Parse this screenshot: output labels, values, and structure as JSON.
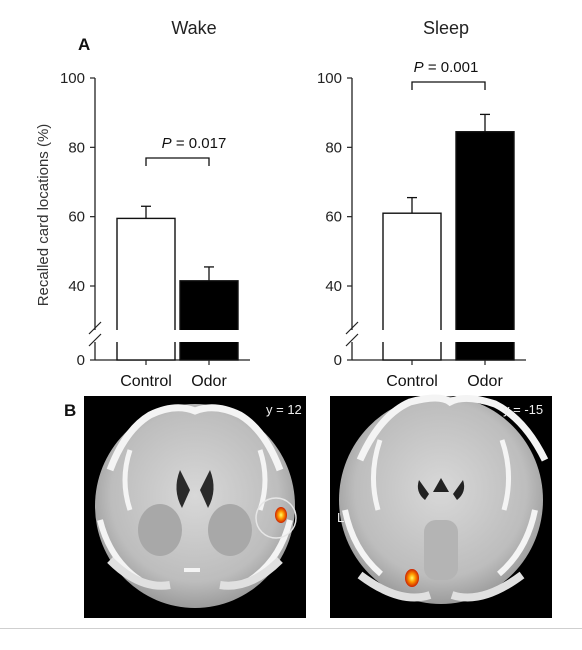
{
  "panel_a_letter": "A",
  "panel_b_letter": "B",
  "ylabel": "Recalled card locations (%)",
  "colors": {
    "control_fill": "#ffffff",
    "odor_fill": "#000000",
    "axis": "#222222"
  },
  "chart_data": [
    {
      "type": "bar",
      "title": "Wake",
      "categories": [
        "Control",
        "Odor"
      ],
      "values": [
        59.5,
        41.5
      ],
      "errors": [
        3.5,
        4
      ],
      "ylim": [
        0,
        100
      ],
      "yticks": [
        "0",
        "40",
        "60",
        "80",
        "100"
      ],
      "axis_break": true,
      "xlabel": "",
      "ylabel": "Recalled card locations (%)",
      "annotation": {
        "italic": "P",
        "text": " = 0.017"
      }
    },
    {
      "type": "bar",
      "title": "Sleep",
      "categories": [
        "Control",
        "Odor"
      ],
      "values": [
        61,
        84.5
      ],
      "errors": [
        4.5,
        5
      ],
      "ylim": [
        0,
        100
      ],
      "yticks": [
        "0",
        "40",
        "60",
        "80",
        "100"
      ],
      "axis_break": true,
      "xlabel": "",
      "ylabel": "",
      "annotation": {
        "italic": "P",
        "text": " = 0.001"
      }
    }
  ],
  "brain_images": [
    {
      "label": "y = 12",
      "hemisphere_label": ""
    },
    {
      "label": "y = -15",
      "hemisphere_label": "L"
    }
  ]
}
